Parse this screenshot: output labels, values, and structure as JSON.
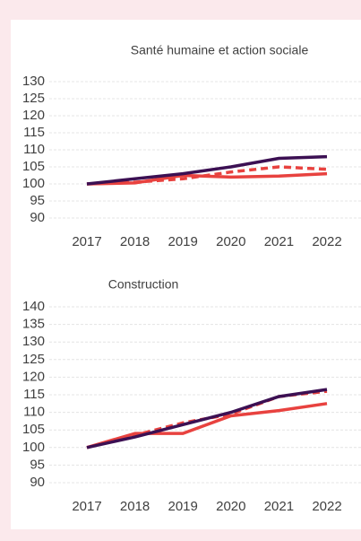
{
  "chart_data": [
    {
      "type": "line",
      "title": "Santé humaine et action sociale",
      "categories": [
        "2017",
        "2018",
        "2019",
        "2020",
        "2021",
        "2022"
      ],
      "ylim": [
        90,
        130
      ],
      "yticks": [
        90,
        95,
        100,
        105,
        110,
        115,
        120,
        125,
        130
      ],
      "grid": true,
      "series": [
        {
          "color": "#e8423f",
          "dashed": false,
          "values": [
            100,
            100.3,
            102.5,
            102,
            102.3,
            103
          ]
        },
        {
          "color": "#e8423f",
          "dashed": true,
          "values": [
            100,
            100.5,
            101.5,
            103.5,
            105,
            104.3
          ]
        },
        {
          "color": "#3c1053",
          "dashed": false,
          "values": [
            100,
            101.5,
            103,
            105,
            107.5,
            108
          ]
        }
      ]
    },
    {
      "type": "line",
      "title": "Construction",
      "categories": [
        "2017",
        "2018",
        "2019",
        "2020",
        "2021",
        "2022"
      ],
      "ylim": [
        90,
        140
      ],
      "yticks": [
        90,
        95,
        100,
        105,
        110,
        115,
        120,
        125,
        130,
        135,
        140
      ],
      "grid": true,
      "series": [
        {
          "color": "#e8423f",
          "dashed": false,
          "values": [
            100,
            104,
            104,
            109,
            110.5,
            112.5
          ]
        },
        {
          "color": "#e8423f",
          "dashed": true,
          "values": [
            100,
            103.5,
            107,
            109.5,
            114.5,
            116
          ]
        },
        {
          "color": "#3c1053",
          "dashed": false,
          "values": [
            100,
            103,
            106.5,
            110,
            114.5,
            116.5
          ]
        }
      ]
    }
  ]
}
